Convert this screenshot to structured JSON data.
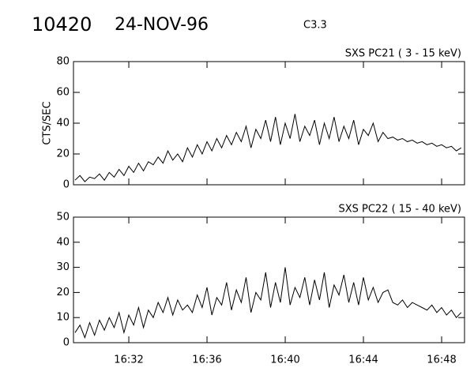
{
  "header": {
    "id": "10420",
    "date": "24-NOV-96",
    "class": "C3.3"
  },
  "chart_data": [
    {
      "type": "line",
      "title": "SXS PC21  (  3 - 15 keV)",
      "y_label": "CTS/SEC",
      "color": "#000000",
      "xlim": [
        29.17,
        49.17
      ],
      "xticks": [
        32,
        36,
        40,
        44,
        48
      ],
      "ylim": [
        0,
        80
      ],
      "yticks": [
        0,
        20,
        40,
        60,
        80
      ],
      "x": [
        29.25,
        29.5,
        29.75,
        30,
        30.25,
        30.5,
        30.75,
        31,
        31.25,
        31.5,
        31.75,
        32,
        32.25,
        32.5,
        32.75,
        33,
        33.25,
        33.5,
        33.75,
        34,
        34.25,
        34.5,
        34.75,
        35,
        35.25,
        35.5,
        35.75,
        36,
        36.25,
        36.5,
        36.75,
        37,
        37.25,
        37.5,
        37.75,
        38,
        38.25,
        38.5,
        38.75,
        39,
        39.25,
        39.5,
        39.75,
        40,
        40.25,
        40.5,
        40.75,
        41,
        41.25,
        41.5,
        41.75,
        42,
        42.25,
        42.5,
        42.75,
        43,
        43.25,
        43.5,
        43.75,
        44,
        44.25,
        44.5,
        44.75,
        45,
        45.25,
        45.5,
        45.75,
        46,
        46.25,
        46.5,
        46.75,
        47,
        47.25,
        47.5,
        47.75,
        48,
        48.25,
        48.5,
        48.75,
        49
      ],
      "values": [
        3,
        6,
        2,
        5,
        4,
        7,
        3,
        8,
        5,
        10,
        6,
        12,
        8,
        14,
        9,
        15,
        13,
        18,
        14,
        22,
        16,
        20,
        15,
        24,
        18,
        26,
        20,
        28,
        22,
        30,
        24,
        32,
        26,
        34,
        28,
        38,
        24,
        36,
        30,
        42,
        28,
        44,
        26,
        40,
        30,
        46,
        28,
        38,
        32,
        42,
        26,
        40,
        30,
        44,
        28,
        38,
        30,
        42,
        26,
        36,
        32,
        40,
        28,
        34,
        30,
        31,
        29,
        30,
        28,
        29,
        27,
        28,
        26,
        27,
        25,
        26,
        24,
        25,
        22,
        24
      ]
    },
    {
      "type": "line",
      "title": "SXS PC22  ( 15 - 40 keV)",
      "color": "#000000",
      "xlim": [
        29.17,
        49.17
      ],
      "xticks": [
        {
          "value": 32,
          "label": "16:32"
        },
        {
          "value": 36,
          "label": "16:36"
        },
        {
          "value": 40,
          "label": "16:40"
        },
        {
          "value": 44,
          "label": "16:44"
        },
        {
          "value": 48,
          "label": "16:48"
        }
      ],
      "ylim": [
        0,
        50
      ],
      "yticks": [
        0,
        10,
        20,
        30,
        40,
        50
      ],
      "x": [
        29.25,
        29.5,
        29.75,
        30,
        30.25,
        30.5,
        30.75,
        31,
        31.25,
        31.5,
        31.75,
        32,
        32.25,
        32.5,
        32.75,
        33,
        33.25,
        33.5,
        33.75,
        34,
        34.25,
        34.5,
        34.75,
        35,
        35.25,
        35.5,
        35.75,
        36,
        36.25,
        36.5,
        36.75,
        37,
        37.25,
        37.5,
        37.75,
        38,
        38.25,
        38.5,
        38.75,
        39,
        39.25,
        39.5,
        39.75,
        40,
        40.25,
        40.5,
        40.75,
        41,
        41.25,
        41.5,
        41.75,
        42,
        42.25,
        42.5,
        42.75,
        43,
        43.25,
        43.5,
        43.75,
        44,
        44.25,
        44.5,
        44.75,
        45,
        45.25,
        45.5,
        45.75,
        46,
        46.25,
        46.5,
        46.75,
        47,
        47.25,
        47.5,
        47.75,
        48,
        48.25,
        48.5,
        48.75,
        49
      ],
      "values": [
        4,
        7,
        2,
        8,
        3,
        9,
        5,
        10,
        6,
        12,
        4,
        11,
        7,
        14,
        6,
        13,
        10,
        16,
        12,
        18,
        11,
        17,
        13,
        15,
        12,
        19,
        14,
        22,
        11,
        18,
        15,
        24,
        13,
        21,
        16,
        26,
        12,
        20,
        17,
        28,
        14,
        24,
        16,
        30,
        15,
        22,
        18,
        26,
        15,
        25,
        17,
        28,
        14,
        23,
        19,
        27,
        16,
        24,
        15,
        26,
        17,
        22,
        16,
        20,
        21,
        16,
        15,
        17,
        14,
        16,
        15,
        14,
        13,
        15,
        12,
        14,
        11,
        13,
        10,
        12
      ]
    }
  ]
}
